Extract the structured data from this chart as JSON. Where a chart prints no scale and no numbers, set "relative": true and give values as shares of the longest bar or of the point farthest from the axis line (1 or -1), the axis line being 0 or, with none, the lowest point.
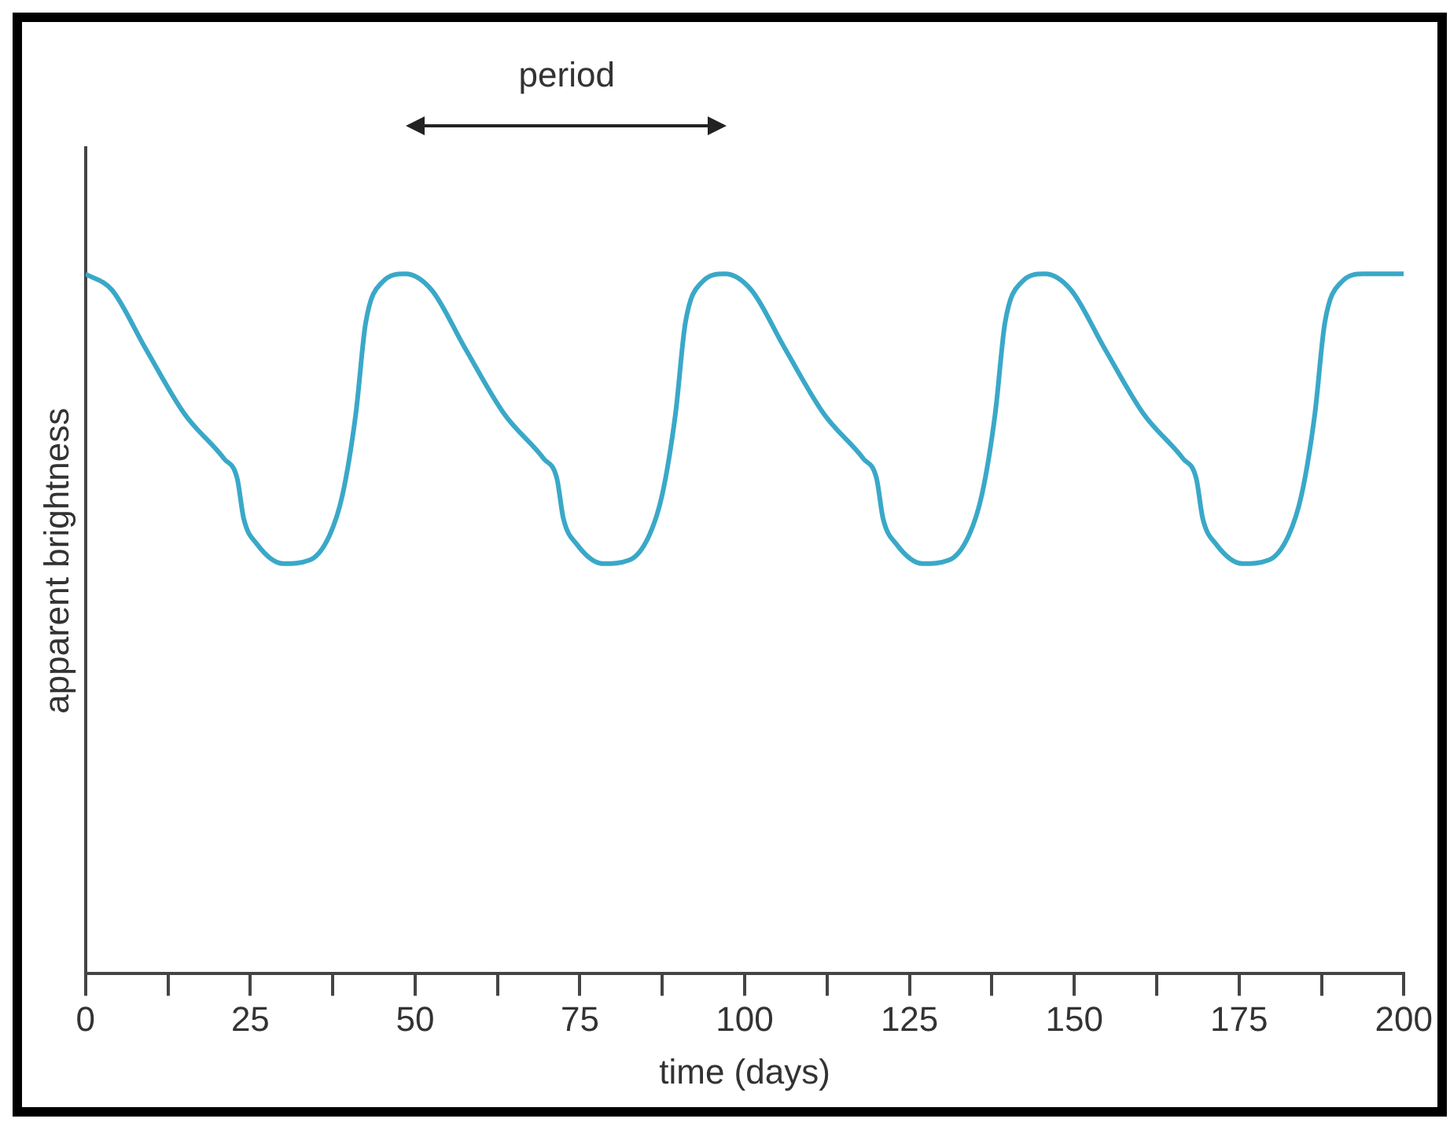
{
  "chart_data": {
    "type": "line",
    "relative": true,
    "xlabel": "time (days)",
    "ylabel": "apparent brightness",
    "xlim": [
      0,
      200
    ],
    "xticks": [
      0,
      {
        "value": 12.5,
        "label": null
      },
      25,
      {
        "value": 37.5,
        "label": null
      },
      50,
      {
        "value": 62.5,
        "label": null
      },
      75,
      {
        "value": 87.5,
        "label": null
      },
      100,
      {
        "value": 112.5,
        "label": null
      },
      125,
      {
        "value": 137.5,
        "label": null
      },
      150,
      {
        "value": 162.5,
        "label": null
      },
      175,
      {
        "value": 187.5,
        "label": null
      },
      200
    ],
    "grid": false,
    "legend": false,
    "marker": "none",
    "line_style": "solid",
    "annotations": [
      "period"
    ],
    "series": [
      {
        "color": "#3aa8c8",
        "x": [
          0,
          4,
          9,
          15,
          21,
          23,
          24,
          26,
          30,
          34,
          37,
          39,
          41,
          42.5,
          45,
          48.5,
          52.5,
          57.5,
          63.5,
          69.5,
          71.5,
          72.5,
          74.5,
          78.5,
          82.5,
          85.5,
          87.5,
          89.5,
          91,
          93.5,
          97,
          101,
          106,
          112,
          118,
          120,
          121,
          123,
          127,
          131,
          134,
          136,
          138,
          139.5,
          142,
          145.5,
          149.5,
          154.5,
          160.5,
          166.5,
          168.5,
          169.5,
          171.5,
          175.5,
          179.5,
          182.5,
          184.5,
          186.5,
          188,
          190.5,
          194,
          200
        ],
        "values": [
          1,
          0.977,
          0.895,
          0.8,
          0.736,
          0.708,
          0.65,
          0.614,
          0.586,
          0.591,
          0.626,
          0.685,
          0.8,
          0.93,
          0.988,
          1,
          0.977,
          0.895,
          0.8,
          0.736,
          0.708,
          0.65,
          0.614,
          0.586,
          0.591,
          0.626,
          0.685,
          0.8,
          0.93,
          0.988,
          1,
          0.977,
          0.895,
          0.8,
          0.736,
          0.708,
          0.65,
          0.614,
          0.586,
          0.591,
          0.626,
          0.685,
          0.8,
          0.93,
          0.988,
          1,
          0.977,
          0.895,
          0.8,
          0.736,
          0.708,
          0.65,
          0.614,
          0.586,
          0.591,
          0.626,
          0.685,
          0.8,
          0.93,
          0.988,
          1,
          1
        ]
      }
    ]
  }
}
